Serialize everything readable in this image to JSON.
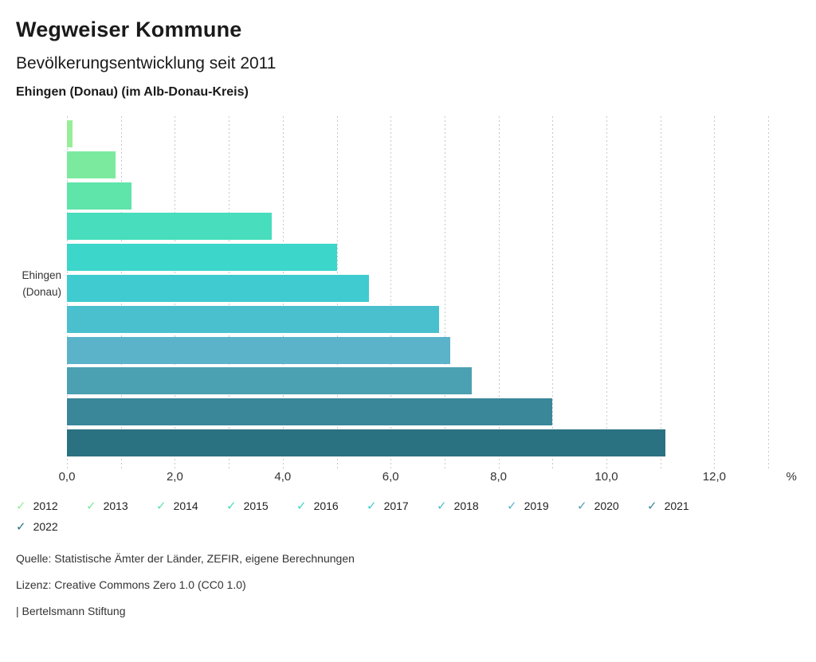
{
  "header": {
    "title": "Wegweiser Kommune",
    "subtitle": "Bevölkerungsentwicklung seit 2011",
    "location": "Ehingen (Donau) (im Alb-Donau-Kreis)"
  },
  "chart_data": {
    "type": "bar",
    "orientation": "horizontal",
    "title": "Bevölkerungsentwicklung seit 2011",
    "category": "Ehingen (Donau)",
    "category_lines": [
      "Ehingen",
      "(Donau)"
    ],
    "unit": "%",
    "xlabel": "%",
    "xlim": [
      0,
      13
    ],
    "grid": "vertical dashed gridlines every 1.0",
    "legend_position": "bottom",
    "x_ticks": [
      {
        "value": 0,
        "label": "0,0"
      },
      {
        "value": 2,
        "label": "2,0"
      },
      {
        "value": 4,
        "label": "4,0"
      },
      {
        "value": 6,
        "label": "6,0"
      },
      {
        "value": 8,
        "label": "8,0"
      },
      {
        "value": 10,
        "label": "10,0"
      },
      {
        "value": 12,
        "label": "12,0"
      }
    ],
    "series": [
      {
        "year": "2012",
        "value": 0.1,
        "color": "#98ED98"
      },
      {
        "year": "2013",
        "value": 0.9,
        "color": "#7CEA9E"
      },
      {
        "year": "2014",
        "value": 1.2,
        "color": "#5FE4AA"
      },
      {
        "year": "2015",
        "value": 3.8,
        "color": "#47DDBD"
      },
      {
        "year": "2016",
        "value": 5.0,
        "color": "#3DD6CB"
      },
      {
        "year": "2017",
        "value": 5.6,
        "color": "#3FCBCF"
      },
      {
        "year": "2018",
        "value": 6.9,
        "color": "#4AC0CE"
      },
      {
        "year": "2019",
        "value": 7.1,
        "color": "#5BB3C9"
      },
      {
        "year": "2020",
        "value": 7.5,
        "color": "#4BA0B1"
      },
      {
        "year": "2021",
        "value": 9.0,
        "color": "#398799"
      },
      {
        "year": "2022",
        "value": 11.1,
        "color": "#2A7181"
      }
    ]
  },
  "footer": {
    "source": "Quelle: Statistische Ämter der Länder, ZEFIR, eigene Berechnungen",
    "license": "Lizenz: Creative Commons Zero 1.0 (CC0 1.0)",
    "attribution": "| Bertelsmann Stiftung"
  }
}
